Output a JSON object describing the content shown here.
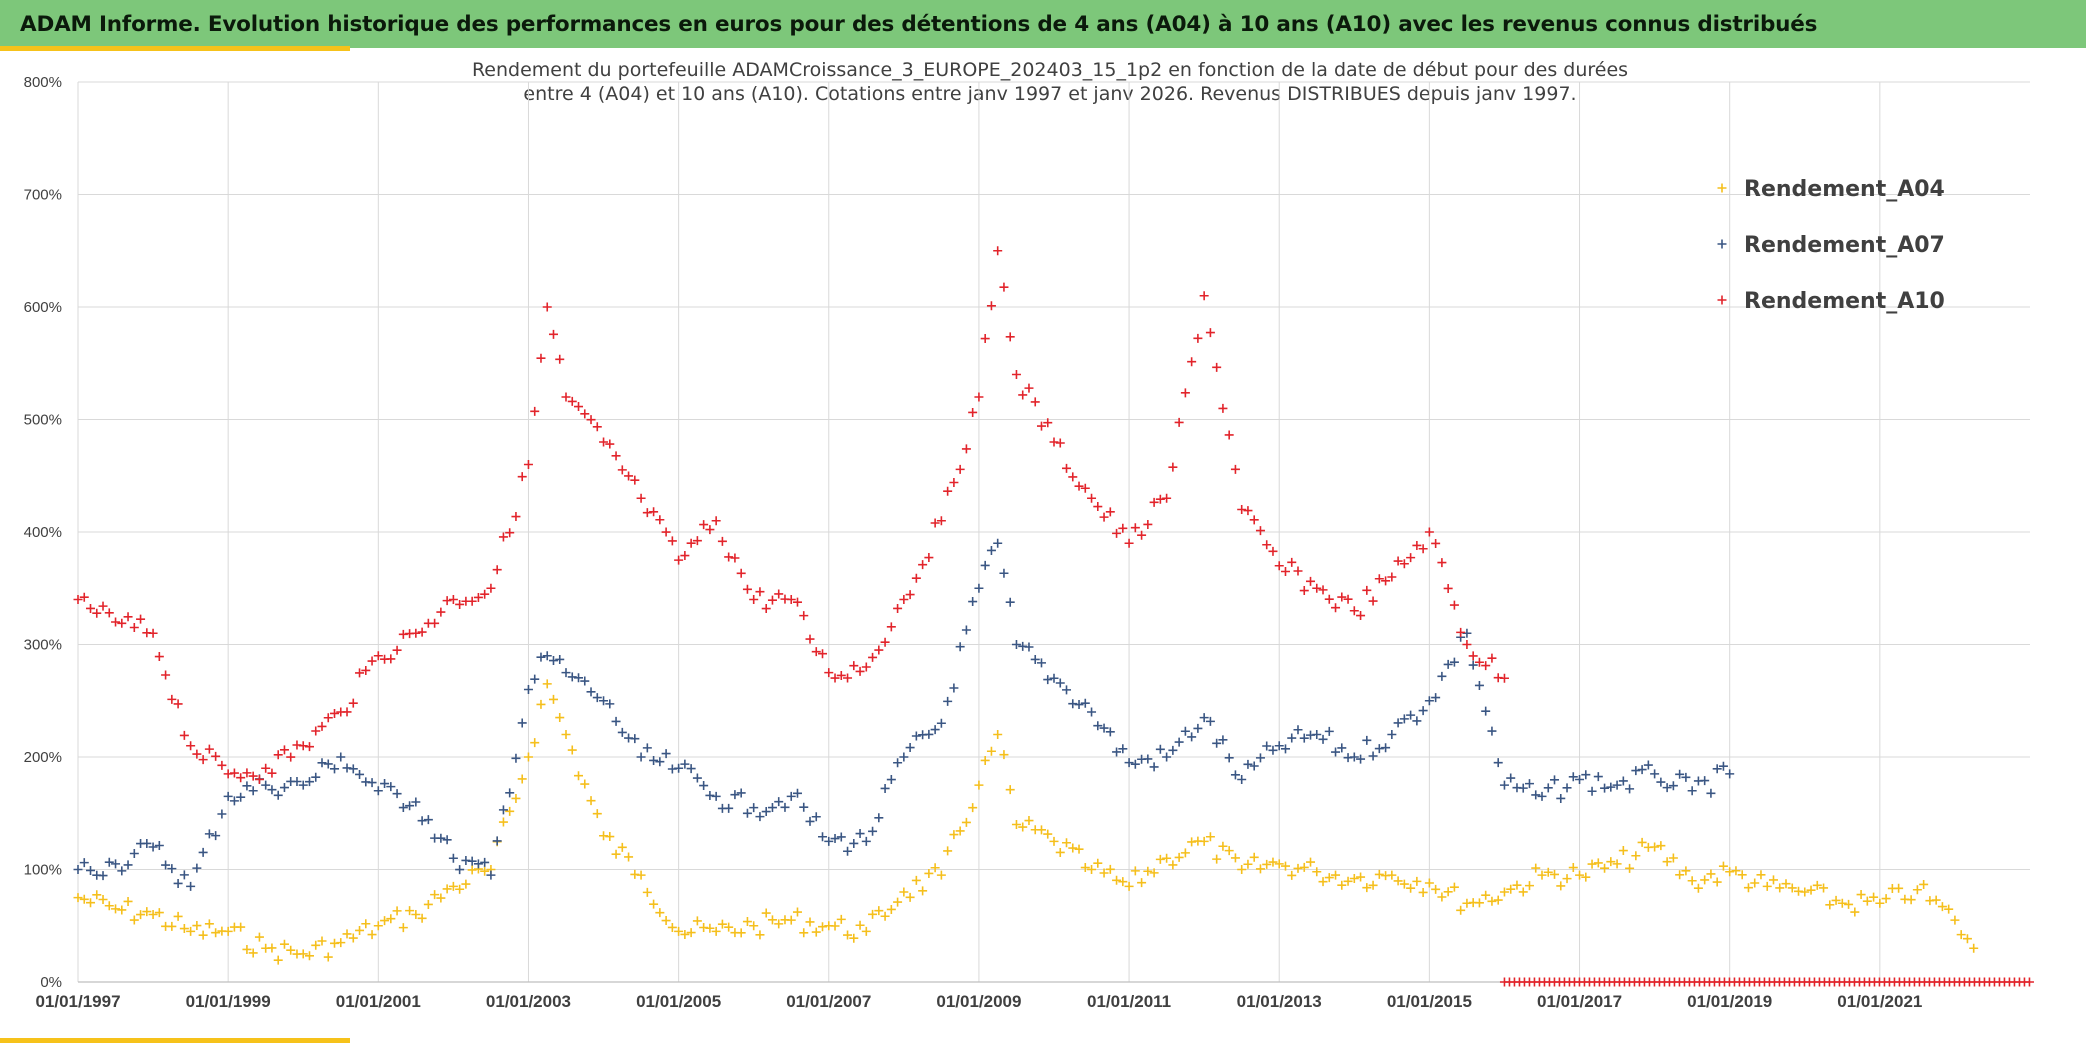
{
  "header": {
    "title": "ADAM Informe. Evolution historique des performances en euros pour des détentions de 4 ans (A04) à 10 ans (A10) avec les revenus connus distribués"
  },
  "colors": {
    "banner": "#7dc77a",
    "accent": "#f6c21a",
    "A04": "#f5bf1c",
    "A07": "#3a5683",
    "A10": "#e2242b",
    "grid": "#d9d9d9",
    "text": "#404040"
  },
  "chart_data": {
    "type": "scatter",
    "marker": "plus",
    "title": [
      "Rendement du portefeuille ADAMCroissance_3_EUROPE_202403_15_1p2  en fonction de la date de début pour des durées",
      "entre 4 (A04) et 10 ans (A10). Cotations entre janv 1997 et janv 2026. Revenus DISTRIBUES depuis janv 1997."
    ],
    "xlabel": "",
    "ylabel": "",
    "ylim": [
      0,
      800
    ],
    "yticks": [
      "0%",
      "100%",
      "200%",
      "300%",
      "400%",
      "500%",
      "600%",
      "700%",
      "800%"
    ],
    "xlim": [
      "1997-01-01",
      "2023-01-01"
    ],
    "xticks": [
      "01/01/1997",
      "01/01/1999",
      "01/01/2001",
      "01/01/2003",
      "01/01/2005",
      "01/01/2007",
      "01/01/2009",
      "01/01/2011",
      "01/01/2013",
      "01/01/2015",
      "01/01/2017",
      "01/01/2019",
      "01/01/2021"
    ],
    "grid": true,
    "legend_position": "top-right",
    "series": [
      {
        "name": "Rendement_A04",
        "color": "#f5bf1c",
        "x": [
          "1997-01",
          "1997-07",
          "1998-01",
          "1998-07",
          "1999-01",
          "1999-07",
          "2000-01",
          "2000-07",
          "2001-01",
          "2001-07",
          "2002-01",
          "2002-07",
          "2003-01",
          "2003-04",
          "2003-07",
          "2004-01",
          "2004-07",
          "2005-01",
          "2005-07",
          "2006-01",
          "2006-07",
          "2007-01",
          "2007-07",
          "2008-01",
          "2008-07",
          "2009-01",
          "2009-04",
          "2009-07",
          "2010-01",
          "2010-07",
          "2011-01",
          "2011-07",
          "2012-01",
          "2012-07",
          "2013-01",
          "2013-07",
          "2014-01",
          "2014-07",
          "2015-01",
          "2015-07",
          "2016-01",
          "2016-07",
          "2017-01",
          "2017-07",
          "2018-01",
          "2018-07",
          "2019-01",
          "2019-07",
          "2020-01",
          "2020-07",
          "2021-01",
          "2021-07",
          "2022-01",
          "2022-04"
        ],
        "y": [
          75,
          65,
          60,
          45,
          45,
          30,
          25,
          35,
          50,
          60,
          85,
          100,
          200,
          265,
          220,
          130,
          95,
          45,
          45,
          50,
          55,
          50,
          45,
          80,
          95,
          175,
          220,
          140,
          125,
          100,
          85,
          110,
          125,
          100,
          105,
          98,
          92,
          95,
          88,
          70,
          80,
          95,
          95,
          105,
          120,
          90,
          98,
          85,
          80,
          70,
          70,
          82,
          55,
          30
        ]
      },
      {
        "name": "Rendement_A07",
        "color": "#3a5683",
        "x": [
          "1997-01",
          "1997-07",
          "1998-01",
          "1998-07",
          "1999-01",
          "1999-07",
          "2000-01",
          "2000-07",
          "2001-01",
          "2001-07",
          "2002-01",
          "2002-07",
          "2003-01",
          "2003-04",
          "2003-07",
          "2004-01",
          "2004-07",
          "2005-01",
          "2005-07",
          "2006-01",
          "2006-07",
          "2007-01",
          "2007-07",
          "2008-01",
          "2008-07",
          "2009-01",
          "2009-04",
          "2009-07",
          "2010-01",
          "2010-07",
          "2011-01",
          "2011-07",
          "2012-01",
          "2012-07",
          "2013-01",
          "2013-07",
          "2014-01",
          "2014-07",
          "2015-01",
          "2015-07",
          "2016-01",
          "2016-07",
          "2017-01",
          "2017-07",
          "2018-01",
          "2018-07",
          "2019-01"
        ],
        "y": [
          100,
          105,
          120,
          85,
          165,
          175,
          175,
          200,
          170,
          160,
          110,
          95,
          260,
          290,
          275,
          250,
          200,
          190,
          165,
          155,
          165,
          125,
          125,
          200,
          230,
          350,
          390,
          300,
          270,
          240,
          195,
          200,
          235,
          180,
          210,
          220,
          200,
          220,
          250,
          310,
          175,
          165,
          180,
          175,
          185,
          170,
          185
        ]
      },
      {
        "name": "Rendement_A10",
        "color": "#e2242b",
        "x": [
          "1997-01",
          "1997-07",
          "1998-01",
          "1998-07",
          "1999-01",
          "1999-07",
          "2000-01",
          "2000-07",
          "2001-01",
          "2001-07",
          "2002-01",
          "2002-07",
          "2003-01",
          "2003-04",
          "2003-07",
          "2004-01",
          "2004-07",
          "2005-01",
          "2005-07",
          "2006-01",
          "2006-07",
          "2007-01",
          "2007-07",
          "2008-01",
          "2008-07",
          "2009-01",
          "2009-04",
          "2009-07",
          "2010-01",
          "2010-07",
          "2011-01",
          "2011-07",
          "2012-01",
          "2012-07",
          "2013-01",
          "2013-07",
          "2014-01",
          "2014-07",
          "2015-01",
          "2015-07",
          "2016-01"
        ],
        "y": [
          340,
          320,
          310,
          210,
          185,
          190,
          210,
          240,
          290,
          310,
          340,
          350,
          460,
          600,
          520,
          480,
          430,
          375,
          410,
          340,
          340,
          275,
          280,
          340,
          410,
          520,
          650,
          540,
          480,
          430,
          390,
          430,
          610,
          420,
          370,
          350,
          330,
          360,
          400,
          300,
          270
        ]
      }
    ],
    "zero_band": {
      "from": "2016-01",
      "to": "2023-01",
      "value": 0,
      "color": "#e2242b"
    }
  }
}
